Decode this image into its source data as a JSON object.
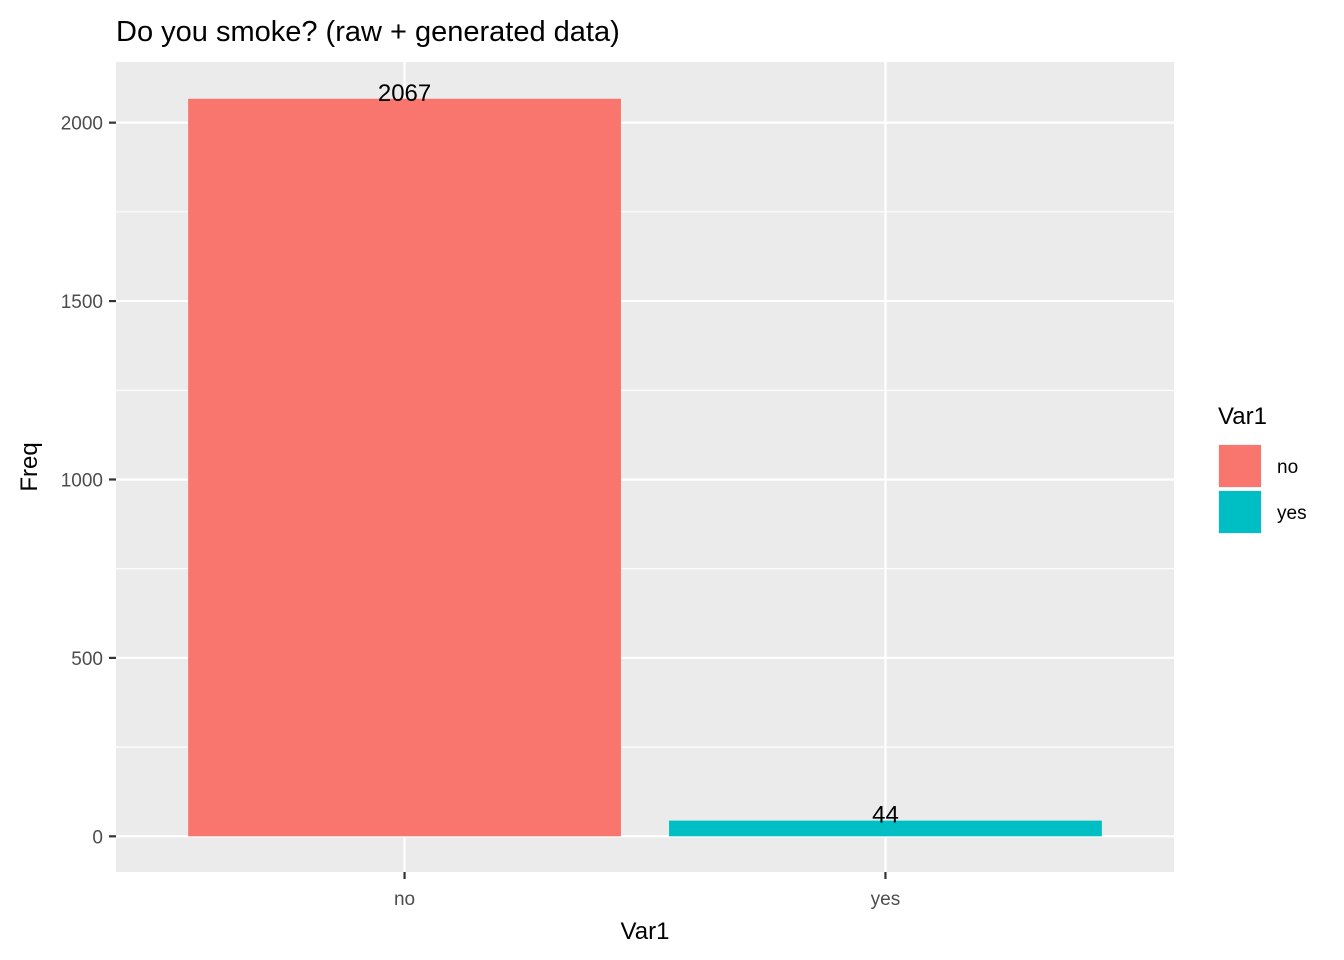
{
  "chart_data": {
    "type": "bar",
    "title": "Do you smoke? (raw + generated data)",
    "xlabel": "Var1",
    "ylabel": "Freq",
    "categories": [
      "no",
      "yes"
    ],
    "values": [
      2067,
      44
    ],
    "data_labels": [
      "2067",
      "44"
    ],
    "colors": [
      "#F8766D",
      "#00BFC4"
    ],
    "ylim": [
      -100,
      2170
    ],
    "yticks": [
      0,
      500,
      1000,
      1500,
      2000
    ],
    "ytick_labels": [
      "0",
      "500",
      "1000",
      "1500",
      "2000"
    ],
    "grid": true,
    "panel_background": "#EBEBEB",
    "legend": {
      "title": "Var1",
      "placement": "right",
      "entries": [
        {
          "label": "no",
          "color": "#F8766D"
        },
        {
          "label": "yes",
          "color": "#00BFC4"
        }
      ]
    }
  }
}
